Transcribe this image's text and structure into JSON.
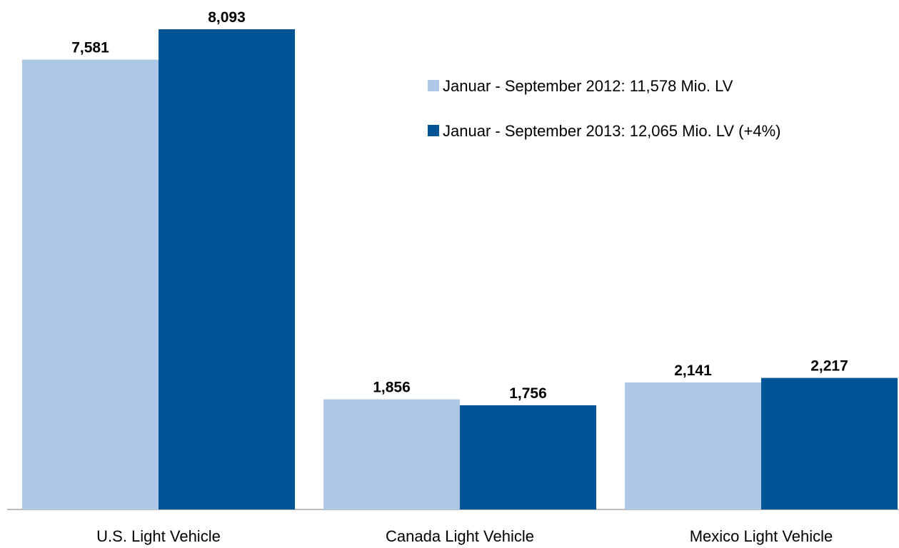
{
  "chart_data": {
    "type": "bar",
    "categories": [
      "U.S. Light Vehicle",
      "Canada Light Vehicle",
      "Mexico Light Vehicle"
    ],
    "series": [
      {
        "name": "Januar - September 2012: 11,578 Mio. LV",
        "values": [
          7581,
          1856,
          2141
        ],
        "labels": [
          "7,581",
          "1,856",
          "2,141"
        ],
        "color": "#adc8e6"
      },
      {
        "name": "Januar - September 2013: 12,065 Mio. LV (+4%)",
        "values": [
          8093,
          1756,
          2217
        ],
        "labels": [
          "8,093",
          "1,756",
          "2,217"
        ],
        "color": "#005596"
      }
    ],
    "ylim": [
      0,
      8500
    ],
    "grid": false,
    "legend_position": "top-right",
    "axis_color": "#a6a6a6"
  }
}
